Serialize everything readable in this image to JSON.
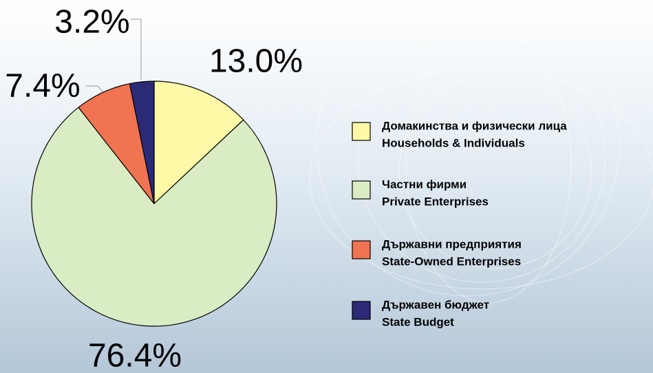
{
  "chart_data": {
    "type": "pie",
    "categories": [
      [
        "Домакинства и физически лица",
        "Households & Individuals"
      ],
      [
        "Частни фирми",
        "Private Enterprises"
      ],
      [
        "Държавни предприятия",
        "State-Owned Enterprises"
      ],
      [
        "Държавен бюджет",
        "State Budget"
      ]
    ],
    "values": [
      13.0,
      76.4,
      7.4,
      3.2
    ],
    "value_labels": [
      "13.0%",
      "76.4%",
      "7.4%",
      "3.2%"
    ],
    "colors": [
      "#fdf9a6",
      "#d9ecc4",
      "#f07352",
      "#2b2a76"
    ]
  }
}
